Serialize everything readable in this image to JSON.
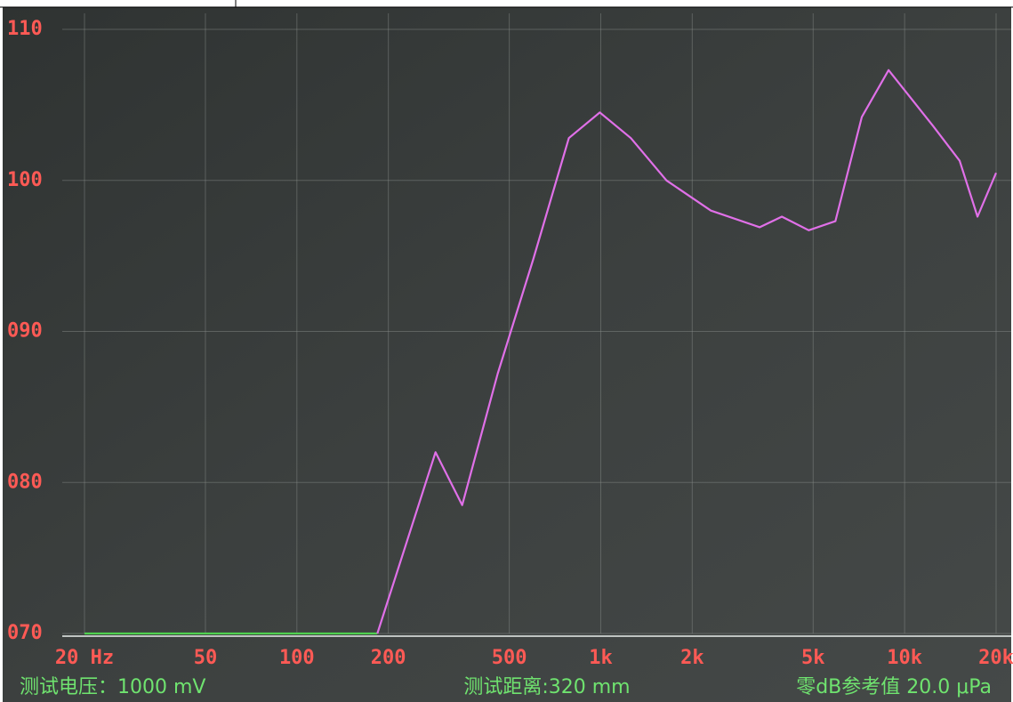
{
  "chart_data": {
    "type": "line",
    "log_x": true,
    "grid": true,
    "xlim": [
      20,
      20000
    ],
    "xticks": [
      {
        "value": 20,
        "label": "20 Hz"
      },
      50,
      100,
      200,
      500,
      {
        "value": 1000,
        "label": "1k"
      },
      {
        "value": 2000,
        "label": "2k"
      },
      {
        "value": 5000,
        "label": "5k"
      },
      {
        "value": 10000,
        "label": "10k"
      },
      {
        "value": 20000,
        "label": "20k"
      }
    ],
    "ylim": [
      70,
      110
    ],
    "yticks": [
      {
        "value": 70,
        "label": "070"
      },
      {
        "value": 80,
        "label": "080"
      },
      {
        "value": 90,
        "label": "090"
      },
      {
        "value": 100,
        "label": "100"
      },
      {
        "value": 110,
        "label": "110"
      }
    ],
    "series": [
      {
        "color": "#4fd14f",
        "x": [
          20,
          184
        ],
        "values": [
          70,
          70
        ]
      },
      {
        "color": "#e070e8",
        "x": [
          184,
          286,
          350,
          458,
          600,
          785,
          993,
          1256,
          1646,
          2303,
          3334,
          3945,
          4834,
          5917,
          7230,
          8852,
          12400,
          15170,
          17370,
          20000
        ],
        "values": [
          70,
          82,
          78.5,
          87.2,
          94.8,
          102.8,
          104.5,
          102.8,
          100,
          98,
          96.9,
          97.6,
          96.7,
          97.3,
          104.2,
          107.3,
          103.6,
          101.3,
          97.6,
          100.5
        ]
      }
    ],
    "annotations": [
      "测试电压：1000 mV",
      "测试距离:320 mm",
      "零dB参考值 20.0 μPa"
    ]
  }
}
